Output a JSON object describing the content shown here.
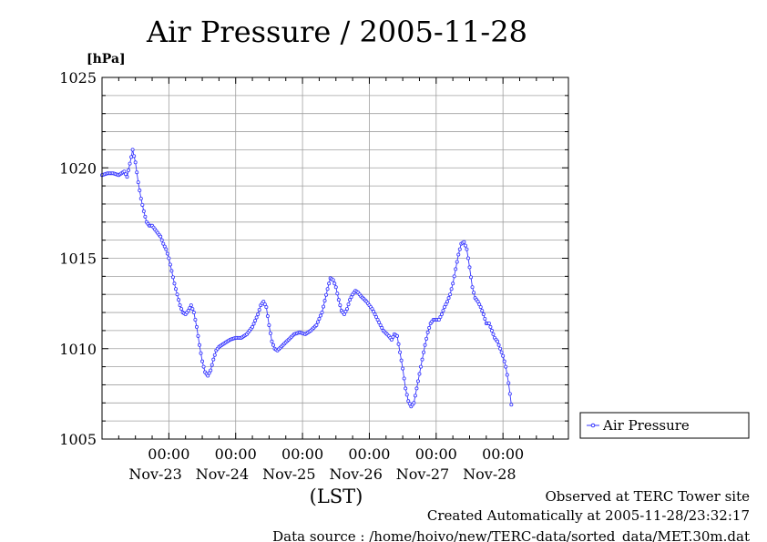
{
  "chart_data": {
    "type": "line",
    "title": "Air Pressure / 2005-11-28",
    "ylabel": "[hPa]",
    "xlabel": "(LST)",
    "ylim": [
      1005,
      1025
    ],
    "y_ticks": [
      1005,
      1010,
      1015,
      1020,
      1025
    ],
    "x_range_hours": [
      -24,
      143.5
    ],
    "x_ticks": [
      {
        "hour": 0,
        "time": "00:00",
        "date": "Nov-23"
      },
      {
        "hour": 24,
        "time": "00:00",
        "date": "Nov-24"
      },
      {
        "hour": 48,
        "time": "00:00",
        "date": "Nov-25"
      },
      {
        "hour": 72,
        "time": "00:00",
        "date": "Nov-26"
      },
      {
        "hour": 96,
        "time": "00:00",
        "date": "Nov-27"
      },
      {
        "hour": 120,
        "time": "00:00",
        "date": "Nov-28"
      }
    ],
    "x_unit": "hours relative to Nov-23 00:00 LST",
    "grid": true,
    "legend_position": "right",
    "series": [
      {
        "name": "Air Pressure",
        "color": "#3333ff",
        "marker": "open-circle",
        "points": [
          [
            -24.0,
            1019.6
          ],
          [
            -22.0,
            1019.7
          ],
          [
            -20.0,
            1019.7
          ],
          [
            -18.0,
            1019.6
          ],
          [
            -16.0,
            1019.8
          ],
          [
            -15.0,
            1019.5
          ],
          [
            -13.5,
            1020.6
          ],
          [
            -13.0,
            1021.0
          ],
          [
            -12.0,
            1020.3
          ],
          [
            -11.0,
            1019.2
          ],
          [
            -10.0,
            1018.3
          ],
          [
            -9.0,
            1017.6
          ],
          [
            -8.0,
            1017.0
          ],
          [
            -7.0,
            1016.8
          ],
          [
            -6.0,
            1016.8
          ],
          [
            -5.0,
            1016.6
          ],
          [
            -4.0,
            1016.4
          ],
          [
            -3.0,
            1016.2
          ],
          [
            -2.0,
            1015.8
          ],
          [
            -1.0,
            1015.5
          ],
          [
            0.0,
            1015.0
          ],
          [
            1.0,
            1014.3
          ],
          [
            2.0,
            1013.6
          ],
          [
            3.0,
            1013.0
          ],
          [
            4.0,
            1012.4
          ],
          [
            5.0,
            1012.0
          ],
          [
            6.0,
            1011.9
          ],
          [
            7.0,
            1012.1
          ],
          [
            8.0,
            1012.4
          ],
          [
            9.0,
            1012.0
          ],
          [
            10.0,
            1011.2
          ],
          [
            11.0,
            1010.2
          ],
          [
            12.0,
            1009.3
          ],
          [
            13.0,
            1008.7
          ],
          [
            14.0,
            1008.5
          ],
          [
            15.0,
            1008.8
          ],
          [
            16.0,
            1009.4
          ],
          [
            17.0,
            1009.9
          ],
          [
            18.0,
            1010.1
          ],
          [
            19.0,
            1010.2
          ],
          [
            20.0,
            1010.3
          ],
          [
            22.0,
            1010.5
          ],
          [
            24.0,
            1010.6
          ],
          [
            26.0,
            1010.6
          ],
          [
            28.0,
            1010.8
          ],
          [
            30.0,
            1011.2
          ],
          [
            32.0,
            1011.9
          ],
          [
            33.0,
            1012.4
          ],
          [
            34.0,
            1012.6
          ],
          [
            35.0,
            1012.3
          ],
          [
            36.0,
            1011.3
          ],
          [
            37.0,
            1010.4
          ],
          [
            38.0,
            1010.0
          ],
          [
            39.0,
            1009.9
          ],
          [
            41.0,
            1010.2
          ],
          [
            43.0,
            1010.5
          ],
          [
            45.0,
            1010.8
          ],
          [
            47.0,
            1010.9
          ],
          [
            49.0,
            1010.8
          ],
          [
            51.0,
            1011.0
          ],
          [
            53.0,
            1011.3
          ],
          [
            55.0,
            1012.0
          ],
          [
            57.0,
            1013.3
          ],
          [
            58.0,
            1013.9
          ],
          [
            59.0,
            1013.8
          ],
          [
            60.0,
            1013.4
          ],
          [
            61.0,
            1012.7
          ],
          [
            62.0,
            1012.1
          ],
          [
            63.0,
            1011.9
          ],
          [
            64.0,
            1012.2
          ],
          [
            65.0,
            1012.7
          ],
          [
            66.0,
            1013.0
          ],
          [
            67.0,
            1013.2
          ],
          [
            68.0,
            1013.1
          ],
          [
            69.0,
            1012.9
          ],
          [
            71.0,
            1012.6
          ],
          [
            73.0,
            1012.2
          ],
          [
            75.0,
            1011.6
          ],
          [
            77.0,
            1011.0
          ],
          [
            79.0,
            1010.7
          ],
          [
            80.0,
            1010.5
          ],
          [
            81.0,
            1010.8
          ],
          [
            82.0,
            1010.7
          ],
          [
            83.0,
            1009.8
          ],
          [
            84.0,
            1008.9
          ],
          [
            85.0,
            1007.8
          ],
          [
            86.0,
            1007.1
          ],
          [
            87.0,
            1006.8
          ],
          [
            88.0,
            1007.0
          ],
          [
            89.0,
            1007.8
          ],
          [
            90.0,
            1008.6
          ],
          [
            91.0,
            1009.4
          ],
          [
            92.0,
            1010.2
          ],
          [
            93.0,
            1010.9
          ],
          [
            94.0,
            1011.4
          ],
          [
            95.0,
            1011.6
          ],
          [
            97.0,
            1011.6
          ],
          [
            98.0,
            1011.9
          ],
          [
            99.0,
            1012.3
          ],
          [
            100.0,
            1012.6
          ],
          [
            101.0,
            1013.0
          ],
          [
            102.0,
            1013.6
          ],
          [
            103.0,
            1014.4
          ],
          [
            104.0,
            1015.2
          ],
          [
            105.0,
            1015.8
          ],
          [
            106.0,
            1015.9
          ],
          [
            107.0,
            1015.5
          ],
          [
            108.0,
            1014.5
          ],
          [
            109.0,
            1013.4
          ],
          [
            110.0,
            1012.8
          ],
          [
            111.0,
            1012.6
          ],
          [
            112.0,
            1012.3
          ],
          [
            113.0,
            1011.9
          ],
          [
            114.0,
            1011.4
          ],
          [
            115.0,
            1011.4
          ],
          [
            116.0,
            1011.0
          ],
          [
            117.0,
            1010.6
          ],
          [
            118.0,
            1010.4
          ],
          [
            119.0,
            1010.0
          ],
          [
            120.0,
            1009.6
          ],
          [
            121.0,
            1009.0
          ],
          [
            122.0,
            1008.1
          ],
          [
            123.0,
            1006.9
          ]
        ]
      }
    ]
  },
  "footer": {
    "observed": "Observed at TERC Tower site",
    "created": "Created Automatically at 2005-11-28/23:32:17",
    "source": "Data source : /home/hoivo/new/TERC-data/sorted_data/MET.30m.dat"
  }
}
